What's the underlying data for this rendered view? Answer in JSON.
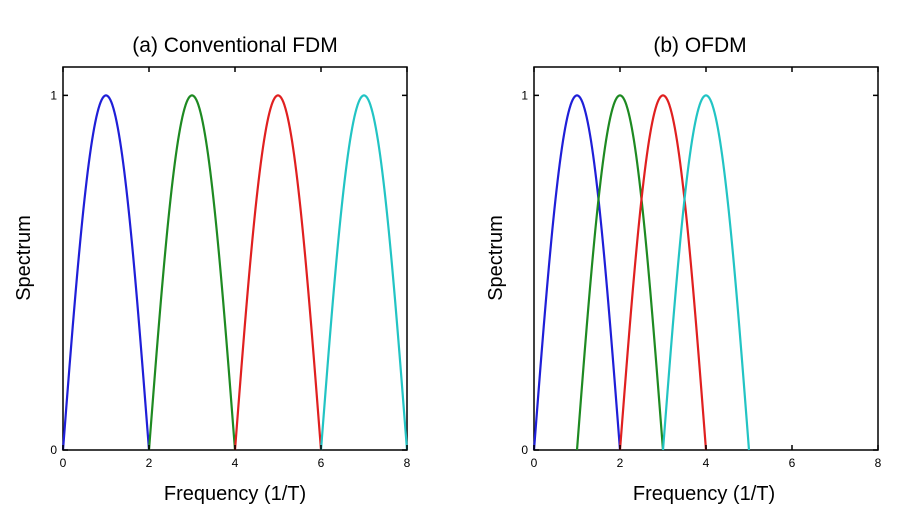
{
  "chart_data": [
    {
      "type": "line",
      "title": "(a) Conventional FDM",
      "xlabel": "Frequency (1/T)",
      "ylabel": "Spectrum",
      "xlim": [
        0,
        8
      ],
      "ylim": [
        0,
        1.08
      ],
      "xticks": [
        "0",
        "2",
        "4",
        "6",
        "8"
      ],
      "yticks": [
        "0",
        "1"
      ],
      "grid": false,
      "series": [
        {
          "center": 1,
          "x_range": [
            0,
            2
          ],
          "peak": 1,
          "color": "#1f1fd8",
          "shape": "half-sine lobe"
        },
        {
          "center": 3,
          "x_range": [
            2,
            4
          ],
          "peak": 1,
          "color": "#1e8a22",
          "shape": "half-sine lobe"
        },
        {
          "center": 5,
          "x_range": [
            4,
            6
          ],
          "peak": 1,
          "color": "#e02020",
          "shape": "half-sine lobe"
        },
        {
          "center": 7,
          "x_range": [
            6,
            8
          ],
          "peak": 1,
          "color": "#22c4c4",
          "shape": "half-sine lobe"
        }
      ]
    },
    {
      "type": "line",
      "title": "(b) OFDM",
      "xlabel": "Frequency (1/T)",
      "ylabel": "Spectrum",
      "xlim": [
        0,
        8
      ],
      "ylim": [
        0,
        1.08
      ],
      "xticks": [
        "0",
        "2",
        "4",
        "6",
        "8"
      ],
      "yticks": [
        "0",
        "1"
      ],
      "grid": false,
      "series": [
        {
          "center": 1,
          "x_range": [
            0,
            2
          ],
          "peak": 1,
          "color": "#1f1fd8",
          "shape": "half-sine lobe"
        },
        {
          "center": 2,
          "x_range": [
            1,
            3
          ],
          "peak": 1,
          "color": "#1e8a22",
          "shape": "half-sine lobe"
        },
        {
          "center": 3,
          "x_range": [
            2,
            4
          ],
          "peak": 1,
          "color": "#e02020",
          "shape": "half-sine lobe"
        },
        {
          "center": 4,
          "x_range": [
            3,
            5
          ],
          "peak": 1,
          "color": "#22c4c4",
          "shape": "half-sine lobe"
        }
      ]
    }
  ]
}
